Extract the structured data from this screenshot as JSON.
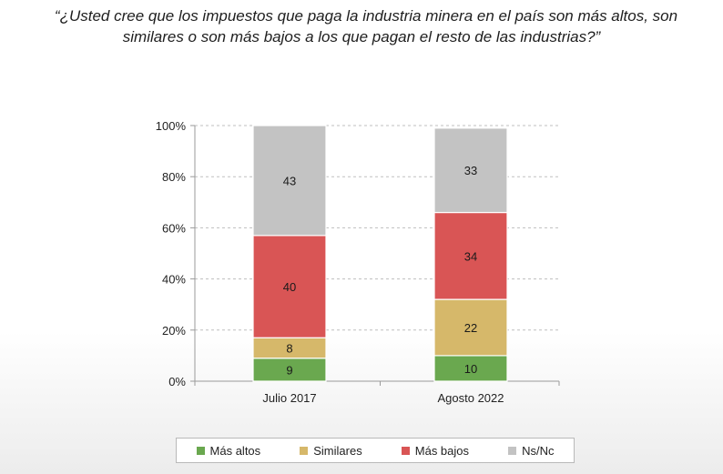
{
  "question": {
    "line1": "“¿Usted cree que los impuestos que paga la industria minera en el país son más altos, son",
    "line2": "similares o son más bajos a los que pagan el resto de las industrias?”"
  },
  "chart_data": {
    "type": "bar",
    "stacked": true,
    "categories": [
      "Julio 2017",
      "Agosto 2022"
    ],
    "series": [
      {
        "name": "Más altos",
        "values": [
          9,
          10
        ],
        "color": "#6aa84f"
      },
      {
        "name": "Similares",
        "values": [
          8,
          22
        ],
        "color": "#d6b86a"
      },
      {
        "name": "Más bajos",
        "values": [
          40,
          34
        ],
        "color": "#d95555"
      },
      {
        "name": "Ns/Nc",
        "values": [
          43,
          33
        ],
        "color": "#c3c3c3"
      }
    ],
    "yticks": [
      "0%",
      "20%",
      "40%",
      "60%",
      "80%",
      "100%"
    ],
    "ylim": [
      0,
      100
    ],
    "grid": true,
    "legend_position": "bottom"
  }
}
